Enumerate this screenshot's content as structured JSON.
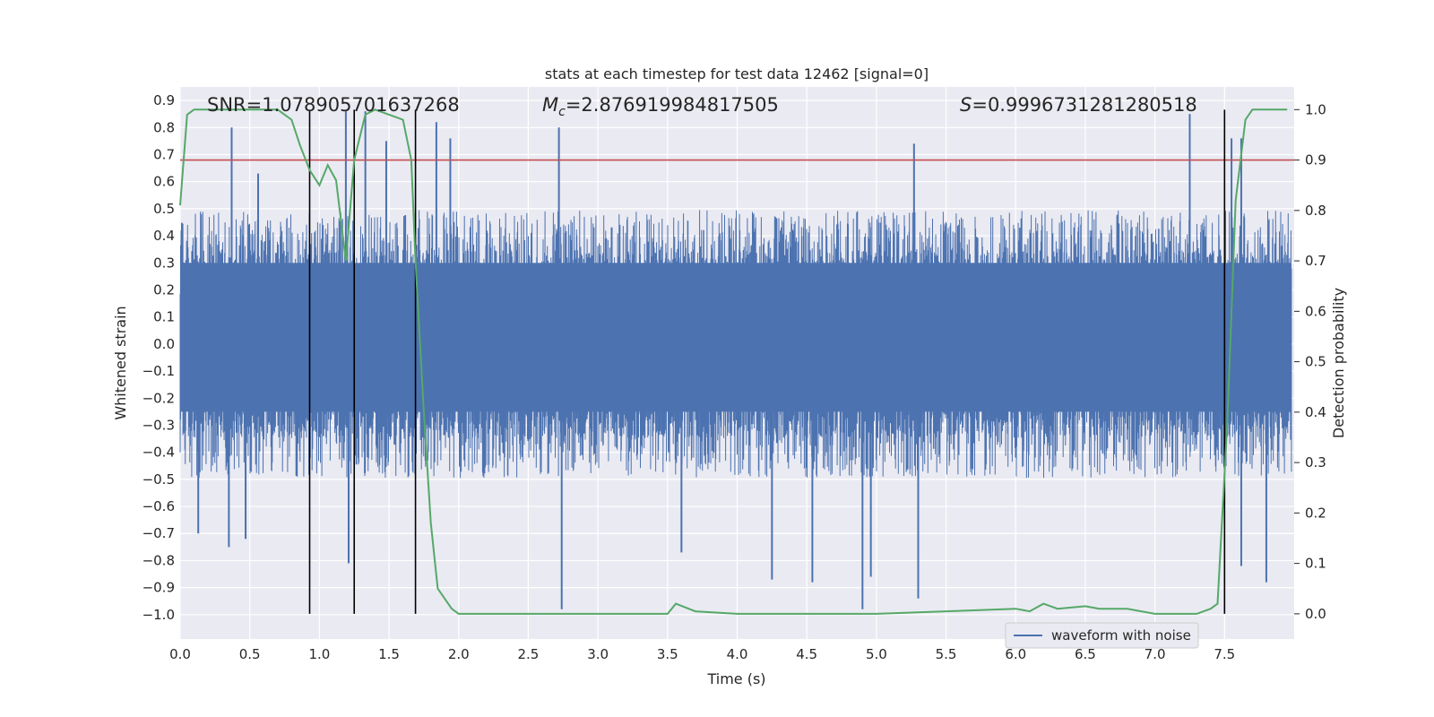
{
  "chart_data": {
    "type": "line",
    "title": "stats at each timestep for test data 12462 [signal=0]",
    "xlabel": "Time (s)",
    "ylabel_left": "Whitened strain",
    "ylabel_right": "Detection probability",
    "xlim": [
      0.0,
      8.0
    ],
    "ylim_left": [
      -1.09,
      0.95
    ],
    "ylim_right": [
      -0.05,
      1.045
    ],
    "x_ticks": [
      "0.0",
      "0.5",
      "1.0",
      "1.5",
      "2.0",
      "2.5",
      "3.0",
      "3.5",
      "4.0",
      "4.5",
      "5.0",
      "5.5",
      "6.0",
      "6.5",
      "7.0",
      "7.5"
    ],
    "x_tick_values": [
      0.0,
      0.5,
      1.0,
      1.5,
      2.0,
      2.5,
      3.0,
      3.5,
      4.0,
      4.5,
      5.0,
      5.5,
      6.0,
      6.5,
      7.0,
      7.5
    ],
    "y_ticks_left": [
      "0.9",
      "0.8",
      "0.7",
      "0.6",
      "0.5",
      "0.4",
      "0.3",
      "0.2",
      "0.1",
      "0.0",
      "−0.1",
      "−0.2",
      "−0.3",
      "−0.4",
      "−0.5",
      "−0.6",
      "−0.7",
      "−0.8",
      "−0.9",
      "−1.0"
    ],
    "y_tick_values_left": [
      0.9,
      0.8,
      0.7,
      0.6,
      0.5,
      0.4,
      0.3,
      0.2,
      0.1,
      0.0,
      -0.1,
      -0.2,
      -0.3,
      -0.4,
      -0.5,
      -0.6,
      -0.7,
      -0.8,
      -0.9,
      -1.0
    ],
    "y_ticks_right": [
      "1.0",
      "0.9",
      "0.8",
      "0.7",
      "0.6",
      "0.5",
      "0.4",
      "0.3",
      "0.2",
      "0.1",
      "0.0"
    ],
    "y_tick_values_right": [
      1.0,
      0.9,
      0.8,
      0.7,
      0.6,
      0.5,
      0.4,
      0.3,
      0.2,
      0.1,
      0.0
    ],
    "annotations": {
      "snr_text": "SNR=1.078905701637268",
      "mc_symbol": "M",
      "mc_subscript": "c",
      "mc_value": "=2.876919984817505",
      "s_symbol": "S",
      "s_value": "=0.9996731281280518"
    },
    "threshold": {
      "value": 0.9,
      "color": "#c44e52"
    },
    "vertical_markers": [
      0.93,
      1.25,
      1.69,
      7.5
    ],
    "legend": {
      "label": "waveform with noise",
      "location": "lower right"
    },
    "series": [
      {
        "name": "waveform with noise",
        "axis": "left",
        "color": "#4c72b0",
        "envelope": {
          "typical_high": 0.45,
          "typical_low": -0.45,
          "max": 0.85,
          "min": -0.98
        },
        "spikes": [
          {
            "x": 0.37,
            "y": 0.8
          },
          {
            "x": 0.56,
            "y": 0.63
          },
          {
            "x": 1.19,
            "y": 0.86
          },
          {
            "x": 1.33,
            "y": 0.86
          },
          {
            "x": 1.48,
            "y": 0.75
          },
          {
            "x": 1.84,
            "y": 0.82
          },
          {
            "x": 1.94,
            "y": 0.76
          },
          {
            "x": 2.72,
            "y": 0.8
          },
          {
            "x": 5.27,
            "y": 0.74
          },
          {
            "x": 7.25,
            "y": 0.85
          },
          {
            "x": 7.55,
            "y": 0.76
          },
          {
            "x": 7.62,
            "y": 0.76
          },
          {
            "x": 0.13,
            "y": -0.7
          },
          {
            "x": 0.35,
            "y": -0.75
          },
          {
            "x": 0.47,
            "y": -0.72
          },
          {
            "x": 1.21,
            "y": -0.81
          },
          {
            "x": 2.74,
            "y": -0.98
          },
          {
            "x": 3.6,
            "y": -0.77
          },
          {
            "x": 4.25,
            "y": -0.87
          },
          {
            "x": 4.54,
            "y": -0.88
          },
          {
            "x": 4.9,
            "y": -0.98
          },
          {
            "x": 4.96,
            "y": -0.86
          },
          {
            "x": 5.3,
            "y": -0.94
          },
          {
            "x": 7.62,
            "y": -0.82
          },
          {
            "x": 7.8,
            "y": -0.88
          }
        ]
      },
      {
        "name": "detection probability",
        "axis": "right",
        "color": "#55a868",
        "x": [
          0.0,
          0.05,
          0.1,
          0.2,
          0.3,
          0.5,
          0.7,
          0.8,
          0.86,
          0.93,
          1.0,
          1.06,
          1.12,
          1.19,
          1.25,
          1.33,
          1.4,
          1.5,
          1.6,
          1.66,
          1.69,
          1.75,
          1.8,
          1.85,
          1.95,
          2.0,
          2.5,
          3.0,
          3.3,
          3.5,
          3.56,
          3.7,
          4.0,
          4.5,
          5.0,
          5.5,
          6.0,
          6.1,
          6.2,
          6.3,
          6.5,
          6.6,
          6.8,
          7.0,
          7.3,
          7.4,
          7.45,
          7.52,
          7.58,
          7.65,
          7.7,
          7.8,
          7.95
        ],
        "y": [
          0.81,
          0.99,
          1.0,
          1.0,
          1.0,
          1.0,
          1.0,
          0.98,
          0.93,
          0.88,
          0.85,
          0.89,
          0.86,
          0.7,
          0.9,
          0.99,
          1.0,
          0.99,
          0.98,
          0.9,
          0.7,
          0.4,
          0.18,
          0.05,
          0.01,
          0.0,
          0.0,
          0.0,
          0.0,
          0.0,
          0.02,
          0.005,
          0.0,
          0.0,
          0.0,
          0.005,
          0.01,
          0.005,
          0.02,
          0.01,
          0.015,
          0.01,
          0.01,
          0.0,
          0.0,
          0.01,
          0.02,
          0.38,
          0.82,
          0.98,
          1.0,
          1.0,
          1.0
        ]
      }
    ]
  }
}
